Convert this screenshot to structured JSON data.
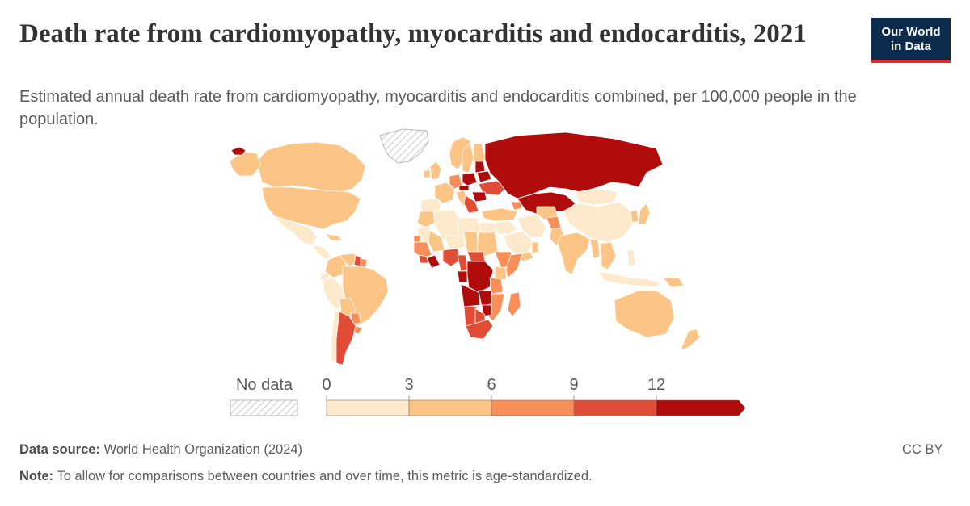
{
  "title": "Death rate from cardiomyopathy, myocarditis and endocarditis, 2021",
  "subtitle": "Estimated annual death rate from cardiomyopathy, myocarditis and endocarditis combined, per 100,000 people in the population.",
  "logo": {
    "line1": "Our World",
    "line2": "in Data"
  },
  "legend": {
    "no_data_label": "No data",
    "ticks": [
      "0",
      "3",
      "6",
      "9",
      "12"
    ],
    "bins": [
      {
        "from": 0,
        "to": 3,
        "color": "#fde9cc"
      },
      {
        "from": 3,
        "to": 6,
        "color": "#fcc585"
      },
      {
        "from": 6,
        "to": 9,
        "color": "#f88f58"
      },
      {
        "from": 9,
        "to": 12,
        "color": "#e14c36"
      },
      {
        "from": 12,
        "to": null,
        "color": "#b10c0c"
      }
    ]
  },
  "footer": {
    "source_label": "Data source:",
    "source_text": "World Health Organization (2024)",
    "note_label": "Note:",
    "note_text": "To allow for comparisons between countries and over time, this metric is age-standardized.",
    "license": "CC BY"
  },
  "colors": {
    "bin1": "#fde9cc",
    "bin2": "#fcc585",
    "bin3": "#f88f58",
    "bin4": "#e14c36",
    "bin5": "#b10c0c",
    "border": "#ffffff",
    "nodata_stroke": "#b8b8b8"
  },
  "regions": [
    {
      "name": "Canada",
      "bin": 2
    },
    {
      "name": "Alaska",
      "bin": 2
    },
    {
      "name": "Greenland",
      "bin": 0
    },
    {
      "name": "Iceland",
      "bin": 5
    },
    {
      "name": "United States",
      "bin": 2
    },
    {
      "name": "Mexico",
      "bin": 1
    },
    {
      "name": "Central America",
      "bin": 1
    },
    {
      "name": "Cuba",
      "bin": 2
    },
    {
      "name": "Colombia",
      "bin": 2
    },
    {
      "name": "Venezuela",
      "bin": 2
    },
    {
      "name": "Guyana",
      "bin": 4
    },
    {
      "name": "Suriname",
      "bin": 3
    },
    {
      "name": "Ecuador",
      "bin": 1
    },
    {
      "name": "Peru",
      "bin": 1
    },
    {
      "name": "Brazil",
      "bin": 2
    },
    {
      "name": "Bolivia",
      "bin": 2
    },
    {
      "name": "Paraguay",
      "bin": 3
    },
    {
      "name": "Chile",
      "bin": 1
    },
    {
      "name": "Argentina",
      "bin": 4
    },
    {
      "name": "Uruguay",
      "bin": 3
    },
    {
      "name": "Norway",
      "bin": 2
    },
    {
      "name": "Sweden",
      "bin": 2
    },
    {
      "name": "Finland",
      "bin": 2
    },
    {
      "name": "United Kingdom",
      "bin": 2
    },
    {
      "name": "Ireland",
      "bin": 2
    },
    {
      "name": "France",
      "bin": 2
    },
    {
      "name": "Iberia",
      "bin": 1
    },
    {
      "name": "Germany",
      "bin": 3
    },
    {
      "name": "Italy",
      "bin": 2
    },
    {
      "name": "Poland",
      "bin": 5
    },
    {
      "name": "Baltics",
      "bin": 5
    },
    {
      "name": "Belarus",
      "bin": 5
    },
    {
      "name": "Ukraine",
      "bin": 4
    },
    {
      "name": "Czechia",
      "bin": 5
    },
    {
      "name": "Romania",
      "bin": 5
    },
    {
      "name": "Balkans",
      "bin": 4
    },
    {
      "name": "Russia",
      "bin": 5
    },
    {
      "name": "Kazakhstan",
      "bin": 5
    },
    {
      "name": "Turkey",
      "bin": 2
    },
    {
      "name": "Caucasus",
      "bin": 3
    },
    {
      "name": "Mongolia",
      "bin": 1
    },
    {
      "name": "China",
      "bin": 1
    },
    {
      "name": "Korea",
      "bin": 2
    },
    {
      "name": "Japan",
      "bin": 2
    },
    {
      "name": "Middle East",
      "bin": 1
    },
    {
      "name": "Saudi Arabia",
      "bin": 1
    },
    {
      "name": "Yemen",
      "bin": 2
    },
    {
      "name": "Oman",
      "bin": 2
    },
    {
      "name": "Iran",
      "bin": 1
    },
    {
      "name": "Central Asia",
      "bin": 2
    },
    {
      "name": "Afghanistan",
      "bin": 3
    },
    {
      "name": "Pakistan",
      "bin": 2
    },
    {
      "name": "India",
      "bin": 2
    },
    {
      "name": "Myanmar",
      "bin": 2
    },
    {
      "name": "Indochina",
      "bin": 2
    },
    {
      "name": "Philippines",
      "bin": 1
    },
    {
      "name": "Indonesia",
      "bin": 1
    },
    {
      "name": "Papua New Guinea",
      "bin": 2
    },
    {
      "name": "Australia",
      "bin": 2
    },
    {
      "name": "New Zealand",
      "bin": 2
    },
    {
      "name": "Morocco",
      "bin": 2
    },
    {
      "name": "Algeria",
      "bin": 1
    },
    {
      "name": "Libya",
      "bin": 1
    },
    {
      "name": "Egypt",
      "bin": 1
    },
    {
      "name": "Mauritania",
      "bin": 1
    },
    {
      "name": "Mali",
      "bin": 2
    },
    {
      "name": "Niger",
      "bin": 1
    },
    {
      "name": "Chad",
      "bin": 2
    },
    {
      "name": "Sudan",
      "bin": 2
    },
    {
      "name": "West Africa",
      "bin": 3
    },
    {
      "name": "Senegal",
      "bin": 3
    },
    {
      "name": "Guinea",
      "bin": 4
    },
    {
      "name": "Sierra Leone",
      "bin": 5
    },
    {
      "name": "Nigeria",
      "bin": 4
    },
    {
      "name": "Cameroon",
      "bin": 4
    },
    {
      "name": "Central African Republic",
      "bin": 4
    },
    {
      "name": "Ethiopia",
      "bin": 3
    },
    {
      "name": "Somalia",
      "bin": 3
    },
    {
      "name": "Kenya",
      "bin": 2
    },
    {
      "name": "Gabon",
      "bin": 5
    },
    {
      "name": "DR Congo",
      "bin": 5
    },
    {
      "name": "Tanzania",
      "bin": 3
    },
    {
      "name": "Angola",
      "bin": 5
    },
    {
      "name": "Zambia",
      "bin": 5
    },
    {
      "name": "Mozambique",
      "bin": 3
    },
    {
      "name": "Zimbabwe",
      "bin": 5
    },
    {
      "name": "Namibia",
      "bin": 4
    },
    {
      "name": "Botswana",
      "bin": 4
    },
    {
      "name": "South Africa",
      "bin": 4
    },
    {
      "name": "Madagascar",
      "bin": 3
    }
  ]
}
